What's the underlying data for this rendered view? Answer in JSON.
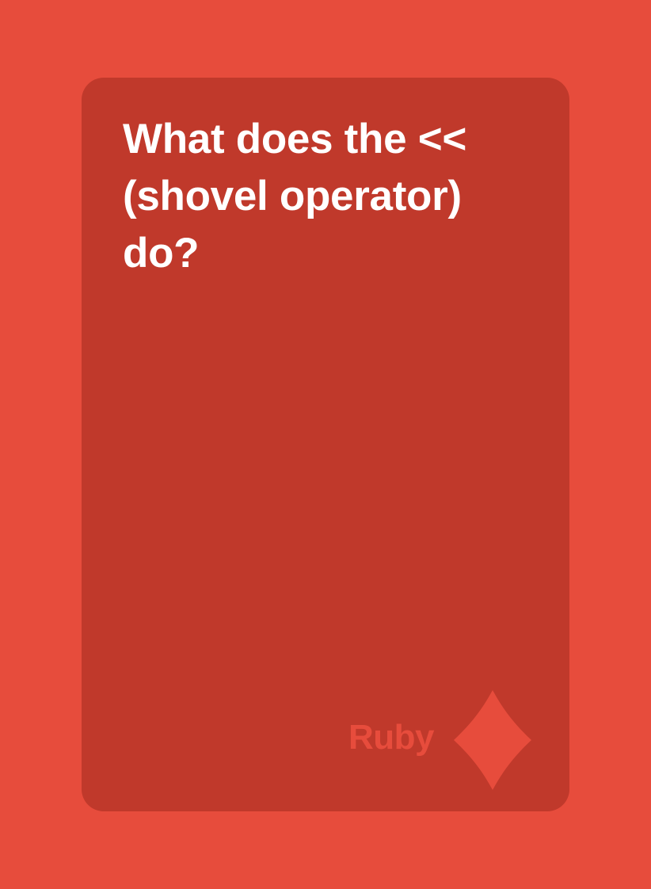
{
  "card": {
    "question": "What does the << (shovel operator) do?",
    "category": "Ruby",
    "suit_icon": "diamond-icon"
  },
  "colors": {
    "background": "#E74C3C",
    "card": "#C0392B",
    "question_text": "#FFFFFF",
    "category_text": "#E74C3C"
  }
}
